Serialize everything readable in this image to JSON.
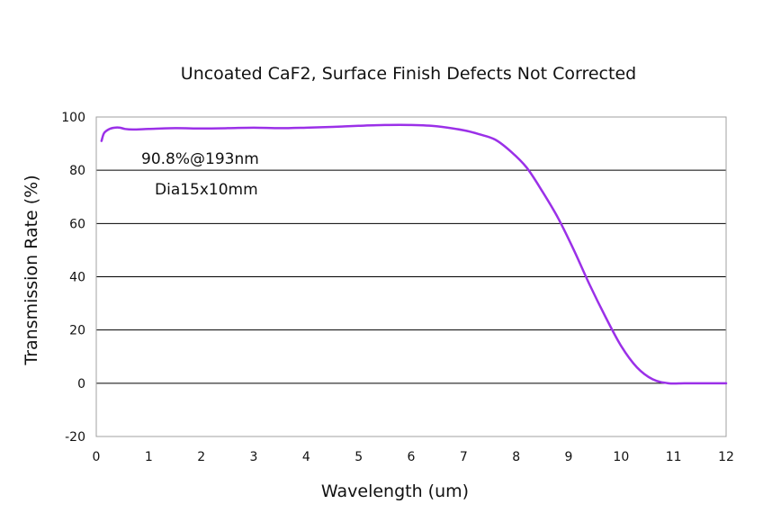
{
  "chart_data": {
    "type": "line",
    "title": "Uncoated CaF2, Surface Finish Defects Not Corrected",
    "xlabel": "Wavelength (um)",
    "ylabel": "Transmission Rate (%)",
    "xlim": [
      0,
      12
    ],
    "ylim": [
      -20,
      100
    ],
    "xticks": [
      0,
      1,
      2,
      3,
      4,
      5,
      6,
      7,
      8,
      9,
      10,
      11,
      12
    ],
    "yticks": [
      -20,
      0,
      20,
      40,
      60,
      80,
      100
    ],
    "grid": "horizontal",
    "legend": "none",
    "annotations": [
      "90.8%@193nm",
      "Dia15x10mm"
    ],
    "series": [
      {
        "color": "#9b30e8",
        "x": [
          0.1,
          0.15,
          0.25,
          0.35,
          0.45,
          0.55,
          0.7,
          1.0,
          1.5,
          2.0,
          2.5,
          3.0,
          3.5,
          4.0,
          4.5,
          5.0,
          5.5,
          6.0,
          6.5,
          7.0,
          7.3,
          7.6,
          7.9,
          8.2,
          8.5,
          8.8,
          9.1,
          9.4,
          9.7,
          10.0,
          10.3,
          10.6,
          10.9,
          11.2,
          11.5,
          12.0
        ],
        "y": [
          91,
          94,
          95.5,
          96,
          96,
          95.5,
          95.3,
          95.5,
          95.8,
          95.7,
          95.8,
          96,
          95.8,
          96,
          96.3,
          96.7,
          97,
          97,
          96.5,
          95,
          93.5,
          91.5,
          87,
          81,
          72,
          62,
          50,
          37,
          25,
          14,
          6,
          1.5,
          0,
          0,
          0,
          0
        ]
      }
    ]
  }
}
